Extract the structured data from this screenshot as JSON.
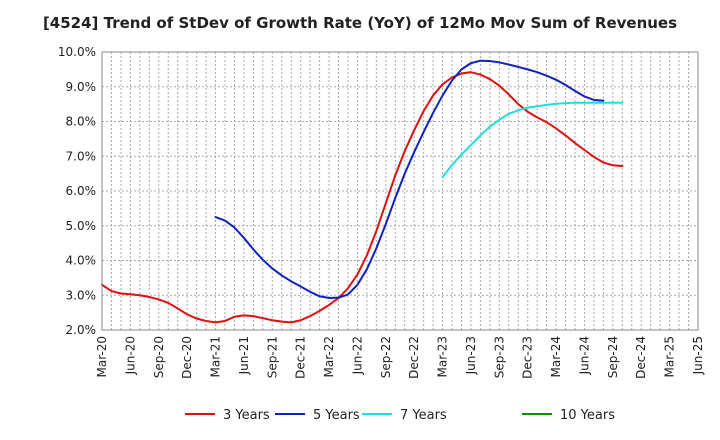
{
  "chart_data": {
    "type": "line",
    "title": "[4524]  Trend of StDev of Growth Rate (YoY) of 12Mo Mov Sum of Revenues",
    "xlabel": "",
    "ylabel": "",
    "ylim": [
      2.0,
      10.0
    ],
    "y_ticks": [
      2.0,
      3.0,
      4.0,
      5.0,
      6.0,
      7.0,
      8.0,
      9.0,
      10.0
    ],
    "y_tick_labels": [
      "2.0%",
      "3.0%",
      "4.0%",
      "5.0%",
      "6.0%",
      "7.0%",
      "8.0%",
      "9.0%",
      "10.0%"
    ],
    "x_tick_labels": [
      "Mar-20",
      "Jun-20",
      "Sep-20",
      "Dec-20",
      "Mar-21",
      "Jun-21",
      "Sep-21",
      "Dec-21",
      "Mar-22",
      "Jun-22",
      "Sep-22",
      "Dec-22",
      "Mar-23",
      "Jun-23",
      "Sep-23",
      "Dec-23",
      "Mar-24",
      "Jun-24",
      "Sep-24",
      "Dec-24",
      "Mar-25",
      "Jun-25"
    ],
    "x_start": "Mar-20",
    "grid": true,
    "legend_position": "bottom",
    "series": [
      {
        "name": "3 Years",
        "color": "#dd1111",
        "start_month_index": 0,
        "values": [
          3.3,
          3.12,
          3.05,
          3.03,
          3.0,
          2.95,
          2.88,
          2.78,
          2.62,
          2.45,
          2.33,
          2.26,
          2.22,
          2.26,
          2.38,
          2.42,
          2.4,
          2.34,
          2.28,
          2.24,
          2.22,
          2.28,
          2.4,
          2.55,
          2.72,
          2.92,
          3.2,
          3.6,
          4.15,
          4.85,
          5.65,
          6.45,
          7.15,
          7.75,
          8.3,
          8.75,
          9.07,
          9.27,
          9.38,
          9.42,
          9.35,
          9.22,
          9.03,
          8.78,
          8.5,
          8.28,
          8.12,
          7.98,
          7.8,
          7.6,
          7.38,
          7.18,
          6.98,
          6.82,
          6.74,
          6.72
        ]
      },
      {
        "name": "5 Years",
        "color": "#1122bb",
        "start_month_index": 12,
        "values": [
          5.25,
          5.15,
          4.95,
          4.65,
          4.32,
          4.02,
          3.77,
          3.57,
          3.4,
          3.25,
          3.1,
          2.97,
          2.92,
          2.93,
          3.02,
          3.3,
          3.75,
          4.35,
          5.05,
          5.8,
          6.5,
          7.12,
          7.7,
          8.25,
          8.75,
          9.18,
          9.5,
          9.68,
          9.75,
          9.74,
          9.7,
          9.64,
          9.57,
          9.5,
          9.42,
          9.32,
          9.2,
          9.05,
          8.88,
          8.72,
          8.62,
          8.6
        ]
      },
      {
        "name": "7 Years",
        "color": "#22dddd",
        "start_month_index": 36,
        "values": [
          6.4,
          6.75,
          7.05,
          7.32,
          7.6,
          7.85,
          8.05,
          8.22,
          8.32,
          8.4,
          8.44,
          8.48,
          8.51,
          8.53,
          8.54,
          8.54,
          8.54,
          8.54,
          8.54,
          8.54
        ]
      },
      {
        "name": "10 Years",
        "color": "#118811",
        "start_month_index": 0,
        "values": []
      }
    ]
  }
}
